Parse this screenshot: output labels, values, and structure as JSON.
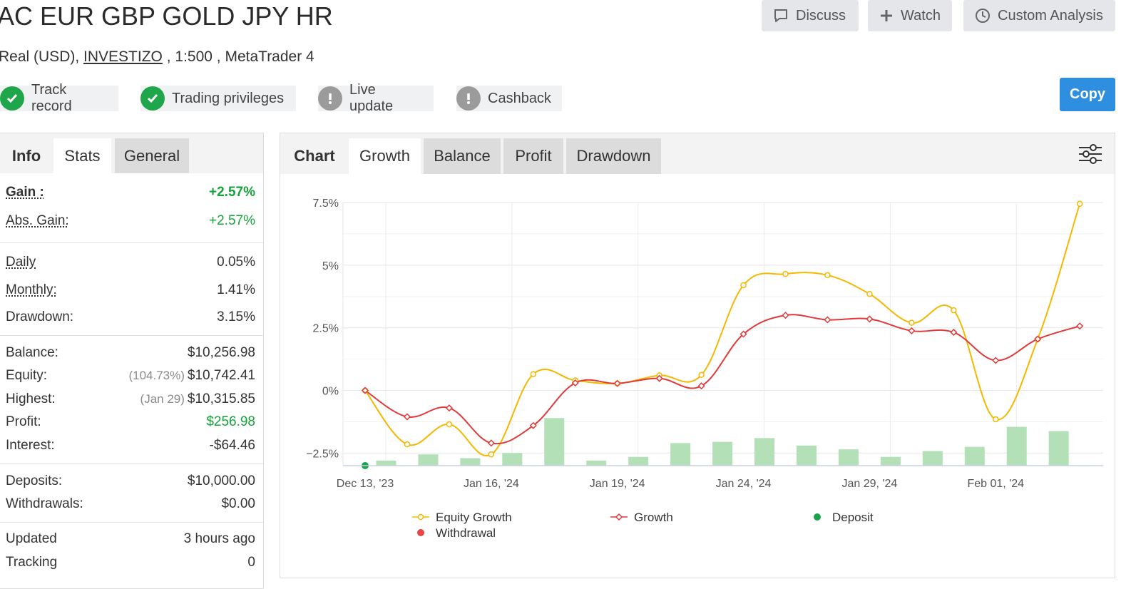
{
  "header": {
    "title": "AC EUR GBP GOLD JPY HR",
    "subtitle_prefix": "Real (USD),",
    "broker": "INVESTIZO",
    "subtitle_suffix": ", 1:500 , MetaTrader 4"
  },
  "actions": {
    "discuss": "Discuss",
    "watch": "Watch",
    "custom_analysis": "Custom Analysis",
    "copy": "Copy"
  },
  "badges": [
    {
      "label": "Track record",
      "status": "verified"
    },
    {
      "label": "Trading privileges",
      "status": "verified"
    },
    {
      "label": "Live update",
      "status": "warning"
    },
    {
      "label": "Cashback",
      "status": "warning"
    }
  ],
  "left_tabs": {
    "info": "Info",
    "stats": "Stats",
    "general": "General"
  },
  "stats": {
    "gain": {
      "label": "Gain :",
      "value": "+2.57%"
    },
    "abs_gain": {
      "label": "Abs. Gain:",
      "value": "+2.57%"
    },
    "daily": {
      "label": "Daily",
      "value": "0.05%"
    },
    "monthly": {
      "label": "Monthly:",
      "value": "1.41%"
    },
    "drawdown": {
      "label": "Drawdown:",
      "value": "3.15%"
    },
    "balance": {
      "label": "Balance:",
      "value": "$10,256.98"
    },
    "equity": {
      "label": "Equity:",
      "note": "(104.73%)",
      "value": "$10,742.41"
    },
    "highest": {
      "label": "Highest:",
      "note": "(Jan 29)",
      "value": "$10,315.85"
    },
    "profit": {
      "label": "Profit:",
      "value": "$256.98"
    },
    "interest": {
      "label": "Interest:",
      "value": "-$64.46"
    },
    "deposits": {
      "label": "Deposits:",
      "value": "$10,000.00"
    },
    "withdrawals": {
      "label": "Withdrawals:",
      "value": "$0.00"
    },
    "updated": {
      "label": "Updated",
      "value": "3 hours ago"
    },
    "tracking": {
      "label": "Tracking",
      "value": "0"
    }
  },
  "chart_tabs": {
    "chart": "Chart",
    "growth": "Growth",
    "balance": "Balance",
    "profit": "Profit",
    "drawdown": "Drawdown"
  },
  "colors": {
    "equity_growth": "#f5b800",
    "growth": "#e03a3a",
    "deposit": "#1aa34a",
    "withdrawal": "#e84545",
    "bars": "#b4e0b8",
    "copy_button": "#2e8fe0"
  },
  "chart_data": {
    "type": "line",
    "y_ticks": [
      "7.5%",
      "5%",
      "2.5%",
      "0%",
      "−2.5%"
    ],
    "y_tick_values": [
      7.5,
      5,
      2.5,
      0,
      -2.5
    ],
    "ylim": [
      -3.0,
      7.5
    ],
    "x_tick_labels": [
      "Dec 13, '23",
      "Jan 16, '24",
      "Jan 19, '24",
      "Jan 24, '24",
      "Jan 29, '24",
      "Feb 01, '24"
    ],
    "x_tick_positions": [
      0,
      3,
      6,
      9,
      12,
      15
    ],
    "points": 18,
    "series": [
      {
        "name": "Equity Growth",
        "type": "line",
        "values": [
          0.0,
          -2.15,
          -1.35,
          -2.55,
          0.65,
          0.4,
          0.28,
          0.6,
          0.62,
          4.2,
          4.65,
          4.6,
          3.85,
          2.7,
          3.2,
          -1.15,
          2.05,
          7.45
        ]
      },
      {
        "name": "Growth",
        "type": "line",
        "values": [
          0.0,
          -1.05,
          -0.7,
          -2.1,
          -1.4,
          0.3,
          0.28,
          0.48,
          0.18,
          2.25,
          3.0,
          2.82,
          2.85,
          2.38,
          2.32,
          1.2,
          2.05,
          2.57
        ]
      },
      {
        "name": "Deposit",
        "type": "scatter",
        "points": [
          {
            "x": 0,
            "y": -3.0
          }
        ]
      },
      {
        "name": "Withdrawal",
        "type": "scatter",
        "points": []
      }
    ],
    "bar_values": [
      0.2,
      0.45,
      0.3,
      0.5,
      1.9,
      0.2,
      0.35,
      0.9,
      0.95,
      1.1,
      0.8,
      0.65,
      0.35,
      0.58,
      0.75,
      1.55,
      1.38
    ],
    "grid": true
  }
}
